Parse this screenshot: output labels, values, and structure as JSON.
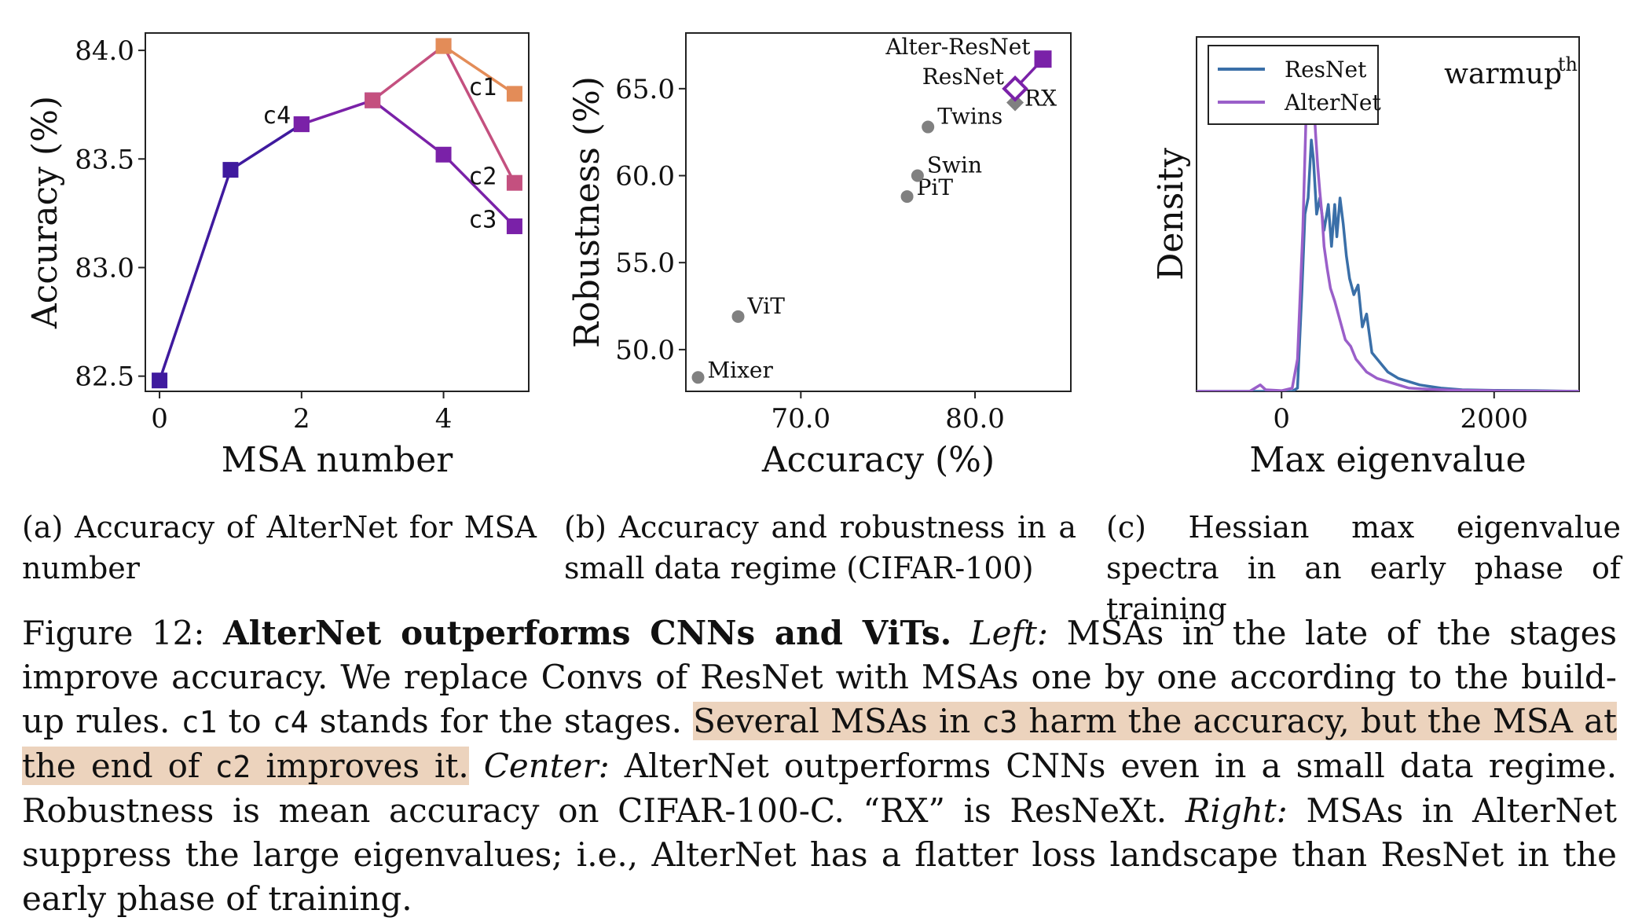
{
  "figures": [
    {
      "id": "a",
      "caption": "(a) Accuracy of AlterNet for MSA number",
      "chart_data": {
        "type": "line",
        "xlabel": "MSA number",
        "ylabel": "Accuracy (%)",
        "xlim": [
          -0.2,
          5.2
        ],
        "ylim": [
          82.43,
          84.08
        ],
        "xticks": [
          0,
          2,
          4
        ],
        "yticks": [
          82.5,
          83.0,
          83.5,
          84.0
        ],
        "ytick_labels": [
          "82.5",
          "83.0",
          "83.5",
          "84.0"
        ],
        "series": [
          {
            "name": "c4",
            "color": "#3f1a9e",
            "x": [
              0,
              1,
              2
            ],
            "y": [
              82.48,
              83.45,
              83.66
            ]
          },
          {
            "name": "c3",
            "color": "#7a21a8",
            "x": [
              2,
              3,
              4,
              5
            ],
            "y": [
              83.66,
              83.77,
              83.52,
              83.19
            ]
          },
          {
            "name": "c2",
            "color": "#c4507f",
            "x": [
              3,
              4,
              5
            ],
            "y": [
              83.77,
              84.02,
              83.39
            ]
          },
          {
            "name": "c1",
            "color": "#e38c58",
            "x": [
              4,
              5
            ],
            "y": [
              84.02,
              83.8
            ]
          }
        ],
        "annotations": [
          {
            "text": "c4",
            "x": 1.65,
            "y": 83.7
          },
          {
            "text": "c1",
            "x": 4.55,
            "y": 83.83
          },
          {
            "text": "c2",
            "x": 4.55,
            "y": 83.42
          },
          {
            "text": "c3",
            "x": 4.55,
            "y": 83.22
          }
        ],
        "grid": false
      }
    },
    {
      "id": "b",
      "caption": "(b) Accuracy and robustness in a small data regime (CIFAR-100)",
      "chart_data": {
        "type": "scatter",
        "xlabel": "Accuracy (%)",
        "ylabel": "Robustness (%)",
        "xlim": [
          63.4,
          85.5
        ],
        "ylim": [
          47.6,
          68.2
        ],
        "xticks": [
          70,
          80
        ],
        "xtick_labels": [
          "70.0",
          "80.0"
        ],
        "yticks": [
          50,
          55,
          60,
          65
        ],
        "ytick_labels": [
          "50.0",
          "55.0",
          "60.0",
          "65.0"
        ],
        "points": [
          {
            "label": "Mixer",
            "x": 64.1,
            "y": 48.4,
            "marker": "circle",
            "color": "#808080"
          },
          {
            "label": "ViT",
            "x": 66.4,
            "y": 51.9,
            "marker": "circle",
            "color": "#808080"
          },
          {
            "label": "PiT",
            "x": 76.1,
            "y": 58.8,
            "marker": "circle",
            "color": "#808080"
          },
          {
            "label": "Swin",
            "x": 76.7,
            "y": 60.0,
            "marker": "circle",
            "color": "#808080"
          },
          {
            "label": "Twins",
            "x": 77.3,
            "y": 62.8,
            "marker": "circle",
            "color": "#808080"
          },
          {
            "label": "RX",
            "x": 82.3,
            "y": 64.2,
            "marker": "diamond",
            "color": "#808080"
          },
          {
            "label": "ResNet",
            "x": 82.3,
            "y": 65.0,
            "marker": "diamond-open",
            "color": "#7a21a8"
          },
          {
            "label": "Alter-ResNet",
            "x": 83.9,
            "y": 66.7,
            "marker": "square",
            "color": "#7a21a8"
          }
        ],
        "grid": false
      }
    },
    {
      "id": "c",
      "caption": "(c) Hessian max eigenvalue spectra in an early phase of training",
      "chart_data": {
        "type": "line",
        "xlabel": "Max eigenvalue",
        "ylabel": "Density",
        "xlim": [
          -800,
          2800
        ],
        "ylim": [
          0,
          1.1
        ],
        "xticks": [
          0,
          2000
        ],
        "annotation": {
          "text": "warmup",
          "superscript": "th"
        },
        "legend": "top-left",
        "series": [
          {
            "name": "ResNet",
            "color": "#3a6fa8",
            "x": [
              -800,
              -200,
              100,
              150,
              190,
              220,
              250,
              280,
              300,
              330,
              360,
              400,
              440,
              470,
              500,
              520,
              550,
              580,
              610,
              640,
              680,
              720,
              760,
              800,
              850,
              900,
              950,
              1000,
              1100,
              1200,
              1300,
              1400,
              1500,
              1700,
              2000,
              2400,
              2800
            ],
            "y": [
              0,
              0,
              0,
              0.01,
              0.3,
              0.55,
              0.6,
              0.78,
              0.72,
              0.55,
              0.6,
              0.5,
              0.58,
              0.45,
              0.58,
              0.48,
              0.6,
              0.52,
              0.42,
              0.35,
              0.3,
              0.33,
              0.2,
              0.24,
              0.12,
              0.1,
              0.08,
              0.06,
              0.04,
              0.03,
              0.02,
              0.015,
              0.01,
              0.005,
              0.003,
              0.002,
              0
            ]
          },
          {
            "name": "AlterNet",
            "color": "#9a5fc9",
            "x": [
              -800,
              -300,
              -250,
              -200,
              -150,
              0,
              100,
              150,
              200,
              230,
              260,
              280,
              300,
              320,
              340,
              360,
              380,
              400,
              430,
              460,
              500,
              550,
              600,
              650,
              700,
              750,
              800,
              900,
              1000,
              1100,
              1200,
              1400,
              1600,
              2000,
              2800
            ],
            "y": [
              0,
              0,
              0.01,
              0.02,
              0.005,
              0.002,
              0.01,
              0.1,
              0.5,
              0.85,
              0.95,
              1.0,
              0.92,
              0.8,
              0.7,
              0.62,
              0.55,
              0.45,
              0.38,
              0.32,
              0.28,
              0.22,
              0.16,
              0.14,
              0.1,
              0.08,
              0.06,
              0.04,
              0.03,
              0.02,
              0.01,
              0.006,
              0.004,
              0.002,
              0
            ]
          }
        ],
        "grid": false
      }
    }
  ],
  "main_caption": {
    "label": "Figure 12:",
    "title": "AlterNet outperforms CNNs and ViTs.",
    "left_label": "Left:",
    "left_text_1": "MSAs in the late of the stages improve accuracy. We replace Convs of ResNet with MSAs one by one according to the build-up rules.",
    "code_c1": "c1",
    "to": "to",
    "code_c4": "c4",
    "left_text_2": "stands for the stages.",
    "hl_1": "Several MSAs in",
    "code_c3": "c3",
    "hl_2": "harm the accuracy, but the MSA at the end of",
    "code_c2": "c2",
    "hl_3": "improves it.",
    "center_label": "Center:",
    "center_text": "AlterNet outperforms CNNs even in a small data regime. Robustness is mean accuracy on CIFAR-100-C. “RX” is ResNeXt.",
    "right_label": "Right:",
    "right_text": "MSAs in AlterNet suppress the large eigenvalues; i.e., AlterNet has a flatter loss landscape than ResNet in the early phase of training."
  }
}
